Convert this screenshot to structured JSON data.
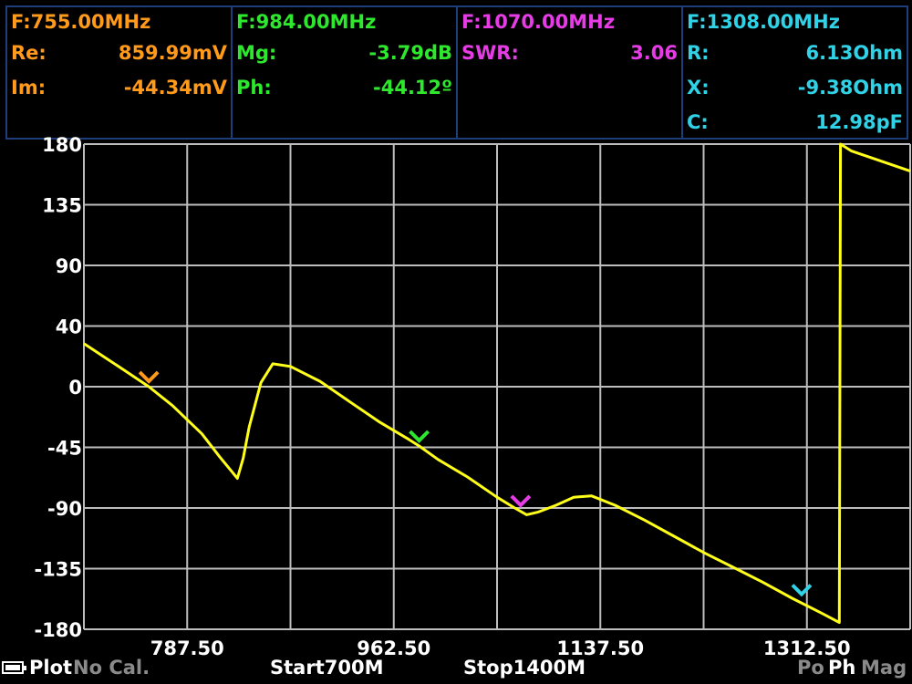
{
  "markers": [
    {
      "freq": "F:755.00MHz",
      "color": "#ff9a1a",
      "rows": [
        {
          "label": "Re:",
          "value": "859.99mV"
        },
        {
          "label": "Im:",
          "value": "-44.34mV"
        }
      ]
    },
    {
      "freq": "F:984.00MHz",
      "color": "#2ee82e",
      "rows": [
        {
          "label": "Mg:",
          "value": "-3.79dB"
        },
        {
          "label": "Ph:",
          "value": "-44.12º"
        }
      ]
    },
    {
      "freq": "F:1070.00MHz",
      "color": "#e63ce6",
      "rows": [
        {
          "label": "SWR:",
          "value": "3.06"
        }
      ]
    },
    {
      "freq": "F:1308.00MHz",
      "color": "#2fd2e6",
      "rows": [
        {
          "label": "R:",
          "value": "6.13Ohm"
        },
        {
          "label": "X:",
          "value": "-9.38Ohm"
        },
        {
          "label": "C:",
          "value": "12.98pF"
        }
      ]
    }
  ],
  "footer": {
    "plot": "Plot",
    "cal": "No Cal.",
    "start": "Start700M",
    "stop": "Stop1400M",
    "mode_po": "Po",
    "mode_ph": "Ph",
    "mode_mag": "Mag"
  },
  "chart_data": {
    "type": "line",
    "ylabel_ticks": [
      "180",
      "135",
      "90",
      "40",
      "0",
      "-45",
      "-90",
      "-135",
      "-180"
    ],
    "x_tick_labels": [
      "787.50",
      "962.50",
      "1137.50",
      "1312.50"
    ],
    "xlim": [
      700,
      1400
    ],
    "ylim": [
      -180,
      180
    ],
    "grid": true,
    "series": [
      {
        "color": "#ffff1a",
        "x": [
          700,
          719,
          738,
          755,
          775,
          800,
          815,
          830,
          835,
          840,
          850,
          860,
          875,
          900,
          925,
          950,
          975,
          984,
          1000,
          1025,
          1050,
          1065,
          1075,
          1085,
          1100,
          1115,
          1130,
          1150,
          1175,
          1200,
          1225,
          1250,
          1275,
          1300,
          1325,
          1340,
          1341,
          1350,
          1400
        ],
        "y": [
          32,
          21,
          10,
          0,
          -14,
          -35,
          -52,
          -68,
          -53,
          -30,
          3,
          17,
          15,
          4,
          -11,
          -26,
          -39,
          -44,
          -54,
          -67,
          -82,
          -90,
          -95,
          -93,
          -88,
          -82,
          -81,
          -88,
          -99,
          -111,
          -123,
          -134,
          -145,
          -157,
          -168,
          -175,
          180,
          175,
          160
        ]
      }
    ],
    "markers": [
      {
        "x": 755,
        "y": 0,
        "color": "#ff9a1a"
      },
      {
        "x": 984,
        "y": -44,
        "color": "#2ee82e"
      },
      {
        "x": 1070,
        "y": -92,
        "color": "#e63ce6"
      },
      {
        "x": 1308,
        "y": -158,
        "color": "#2fd2e6"
      }
    ]
  }
}
